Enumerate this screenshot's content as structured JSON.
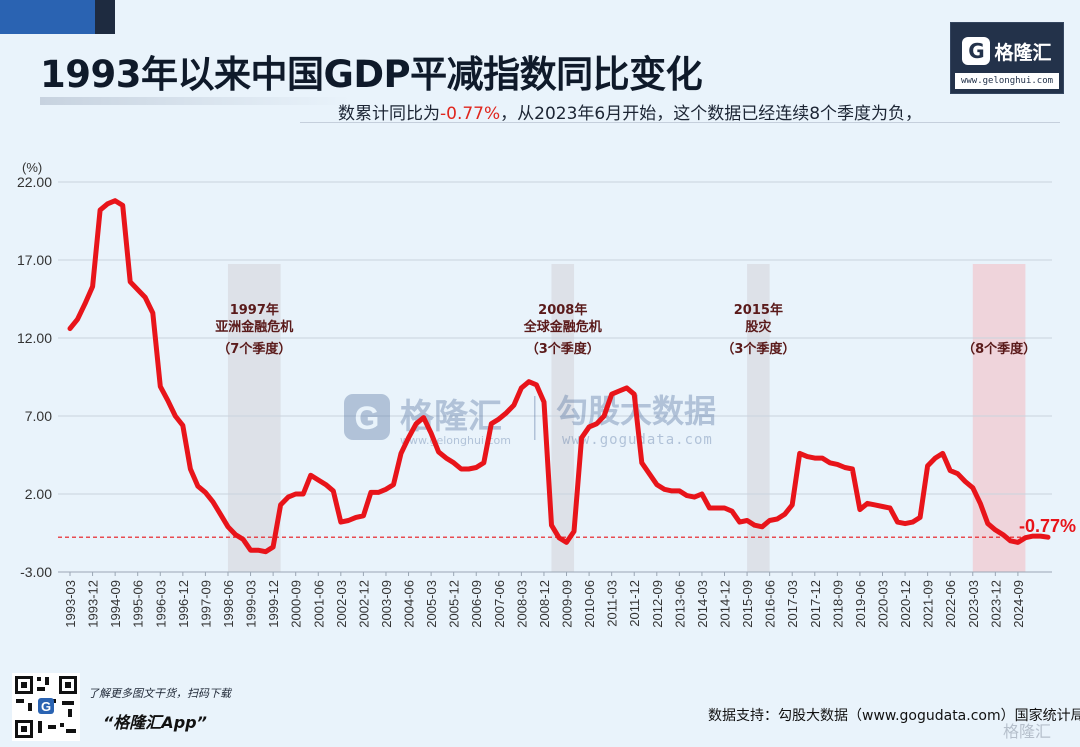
{
  "title": "1993年以来中国GDP平减指数同比变化",
  "subtitle": {
    "prefix": "数累计同比为",
    "highlight": "-0.77%",
    "suffix": "，从2023年6月开始，这个数据已经连续8个季度为负，"
  },
  "logo": {
    "letter": "G",
    "name": "格隆汇",
    "url": "www.gelonghui.com"
  },
  "watermark": {
    "left_name": "格隆汇",
    "left_url": "www.gelonghui.com",
    "right_name": "勾股大数据",
    "right_url": "www.gogudata.com"
  },
  "footer": {
    "note": "了解更多图文干货，扫码下载",
    "app": "“格隆汇App”",
    "source": "数据支持：勾股大数据（www.gogudata.com）国家统计局",
    "brand": "格隆汇"
  },
  "colors": {
    "series": "#e8141a",
    "shade_gray": "#d9dce3",
    "shade_pink": "#f0ccd3",
    "ref_line": "#e8141a",
    "background": "#e9f3fb"
  },
  "chart_data": {
    "type": "line",
    "unit_label": "(%)",
    "ylim": [
      -3,
      22
    ],
    "yticks": [
      "22.00",
      "17.00",
      "12.00",
      "7.00",
      "2.00",
      "-3.00"
    ],
    "ytick_values": [
      22,
      17,
      12,
      7,
      2,
      -3
    ],
    "grid": true,
    "x_tick_labels": [
      "1993-03",
      "1993-12",
      "1994-09",
      "1995-06",
      "1996-03",
      "1996-12",
      "1997-09",
      "1998-06",
      "1999-03",
      "1999-12",
      "2000-09",
      "2001-06",
      "2002-03",
      "2002-12",
      "2003-09",
      "2004-06",
      "2005-03",
      "2005-12",
      "2006-09",
      "2007-06",
      "2008-03",
      "2008-12",
      "2009-09",
      "2010-06",
      "2011-03",
      "2011-12",
      "2012-09",
      "2013-06",
      "2014-03",
      "2014-12",
      "2015-09",
      "2016-06",
      "2017-03",
      "2017-12",
      "2018-09",
      "2019-06",
      "2020-03",
      "2020-12",
      "2021-09",
      "2022-06",
      "2023-03",
      "2023-12",
      "2024-09"
    ],
    "series": [
      {
        "values": [
          12.6,
          13.2,
          14.2,
          15.3,
          20.2,
          20.6,
          20.8,
          20.5,
          15.6,
          15.1,
          14.6,
          13.6,
          8.9,
          8.0,
          7.0,
          6.4,
          3.6,
          2.5,
          2.1,
          1.5,
          0.7,
          -0.1,
          -0.6,
          -0.9,
          -1.6,
          -1.6,
          -1.7,
          -1.4,
          1.3,
          1.8,
          2.0,
          2.0,
          3.2,
          2.9,
          2.6,
          2.2,
          0.2,
          0.3,
          0.5,
          0.6,
          2.1,
          2.1,
          2.3,
          2.6,
          4.6,
          5.6,
          6.5,
          6.9,
          5.9,
          4.7,
          4.3,
          4.0,
          3.6,
          3.6,
          3.7,
          4.0,
          6.5,
          6.8,
          7.2,
          7.7,
          8.8,
          9.2,
          9.0,
          7.9,
          0.0,
          -0.8,
          -1.1,
          -0.4,
          5.6,
          6.3,
          6.5,
          7.0,
          8.4,
          8.6,
          8.8,
          8.4,
          4.0,
          3.3,
          2.6,
          2.3,
          2.2,
          2.2,
          1.9,
          1.8,
          2.0,
          1.1,
          1.1,
          1.1,
          0.9,
          0.2,
          0.3,
          0.0,
          -0.1,
          0.3,
          0.4,
          0.7,
          1.3,
          4.6,
          4.4,
          4.3,
          4.3,
          4.0,
          3.9,
          3.7,
          3.6,
          1.0,
          1.4,
          1.3,
          1.2,
          1.1,
          0.2,
          0.1,
          0.2,
          0.5,
          3.8,
          4.3,
          4.6,
          3.5,
          3.3,
          2.8,
          2.4,
          1.4,
          0.1,
          -0.3,
          -0.6,
          -1.0,
          -1.1,
          -0.8,
          -0.7,
          -0.7,
          -0.77
        ]
      }
    ],
    "reference_line": {
      "value": -0.77,
      "label": "-0.77%"
    },
    "shaded_periods": [
      {
        "label_year": "1997年",
        "label_name": "亚洲金融危机",
        "label_quarters": "（7个季度）",
        "start": "1998-06",
        "end": "2000-03"
      },
      {
        "label_year": "2008年",
        "label_name": "全球金融危机",
        "label_quarters": "（3个季度）",
        "start": "2009-03",
        "end": "2009-12"
      },
      {
        "label_year": "2015年",
        "label_name": "股灾",
        "label_quarters": "（3个季度）",
        "start": "2015-09",
        "end": "2016-06"
      },
      {
        "label_year": "",
        "label_name": "",
        "label_quarters": "（8个季度）",
        "start": "2023-03",
        "end": "2024-12"
      }
    ]
  }
}
